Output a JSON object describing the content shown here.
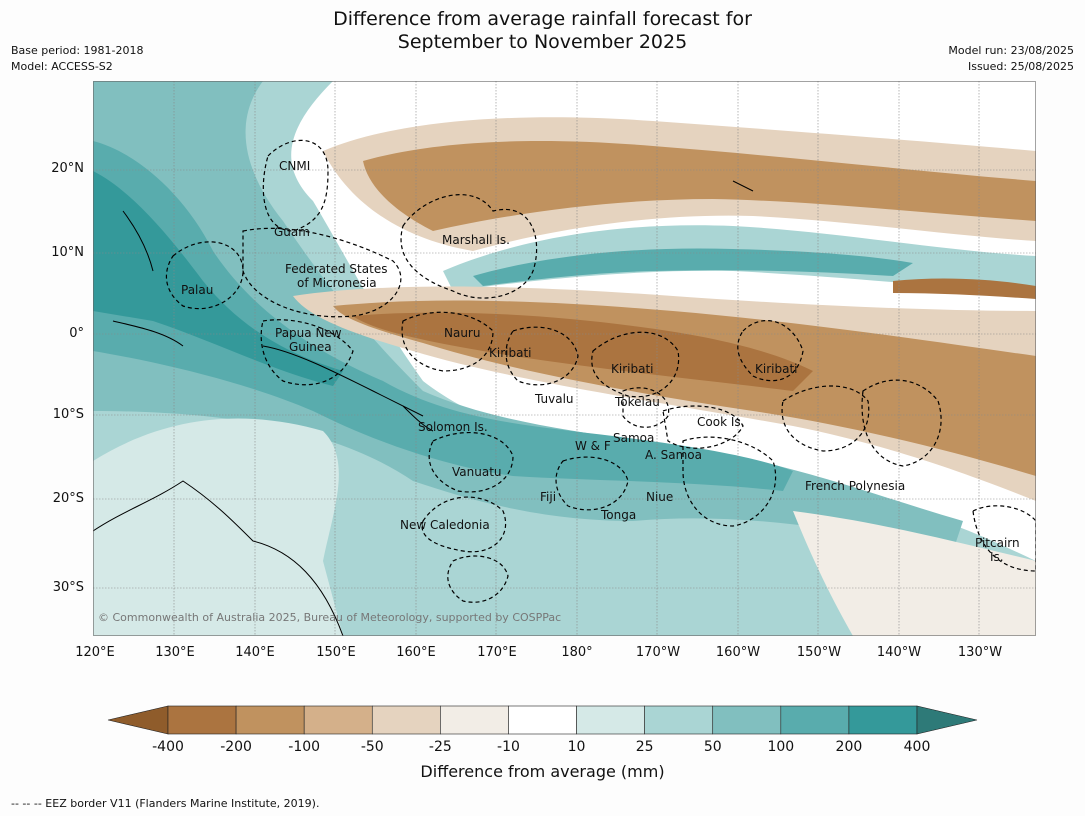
{
  "title_line1": "Difference from average rainfall forecast for",
  "title_line2": "September to November 2025",
  "base_period": "Base period: 1981-2018",
  "model": "Model: ACCESS-S2",
  "model_run": "Model run: 23/08/2025",
  "issued": "Issued: 25/08/2025",
  "lat_labels": [
    "20°N",
    "10°N",
    "0°",
    "10°S",
    "20°S",
    "30°S"
  ],
  "lon_labels": [
    "120°E",
    "130°E",
    "140°E",
    "150°E",
    "160°E",
    "170°E",
    "180°",
    "170°W",
    "160°W",
    "150°W",
    "140°W",
    "130°W"
  ],
  "places": [
    "CNMI",
    "Guam",
    "Marshall Is.",
    "Federated States",
    "of Micronesia",
    "Palau",
    "Papua New",
    "Guinea",
    "Nauru",
    "Kiribati",
    "Kiribati",
    "Kiribati",
    "Tuvalu",
    "Tokelau",
    "Cook Is.",
    "Solomon Is.",
    "W & F",
    "Samoa",
    "A. Samoa",
    "Vanuatu",
    "Fiji",
    "Niue",
    "Tonga",
    "New Caledonia",
    "French Polynesia",
    "Pitcairn",
    "Is."
  ],
  "copyright": "© Commonwealth of Australia 2025, Bureau of Meteorology, supported by COSPPac",
  "colorbar": {
    "ticks": [
      "-400",
      "-200",
      "-100",
      "-50",
      "-25",
      "-10",
      "10",
      "25",
      "50",
      "100",
      "200",
      "400"
    ],
    "colors": [
      "#8f5c2b",
      "#ab7440",
      "#c0925f",
      "#d4b08a",
      "#e5d3bf",
      "#f2ede6",
      "#ffffff",
      "#d5e9e7",
      "#aad5d4",
      "#81bfbf",
      "#59acad",
      "#34999a",
      "#2e7a78"
    ]
  },
  "unit_label": "Difference from average (mm)",
  "eez_note": "--  --  -- EEZ border V11 (Flanders Marine Institute, 2019)."
}
